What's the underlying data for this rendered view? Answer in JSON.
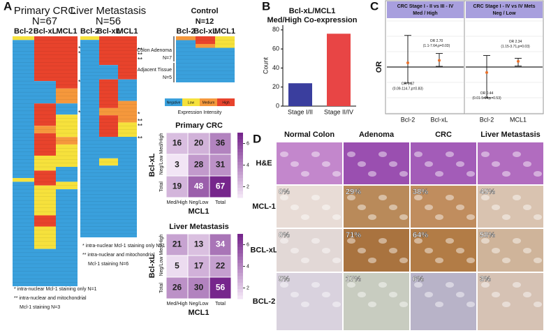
{
  "panel_labels": [
    "A",
    "B",
    "C",
    "D"
  ],
  "levels": [
    {
      "name": "Negative",
      "color": "#3aa0dc"
    },
    {
      "name": "Low",
      "color": "#f6e13c"
    },
    {
      "name": "Medium",
      "color": "#f5983c"
    },
    {
      "name": "High",
      "color": "#e8432c"
    }
  ],
  "legend_title": "Expression Intensity",
  "heatmaps": [
    {
      "title": "Primary CRC",
      "n": "N=67",
      "columns": [
        "Bcl-2",
        "Bcl-xL",
        "MCL1"
      ],
      "runs": [
        [
          [
            1,
            1
          ],
          [
            0,
            37
          ],
          [
            1,
            1
          ],
          [
            0,
            28
          ]
        ],
        [
          [
            3,
            12
          ],
          [
            0,
            6
          ],
          [
            3,
            6
          ],
          [
            2,
            2
          ],
          [
            3,
            6
          ],
          [
            1,
            4
          ],
          [
            3,
            4
          ],
          [
            1,
            8
          ],
          [
            3,
            3
          ],
          [
            1,
            6
          ],
          [
            0,
            10
          ]
        ],
        [
          [
            3,
            14
          ],
          [
            2,
            4
          ],
          [
            0,
            3
          ],
          [
            1,
            6
          ],
          [
            2,
            2
          ],
          [
            1,
            6
          ],
          [
            0,
            4
          ],
          [
            1,
            2
          ],
          [
            0,
            26
          ]
        ]
      ],
      "markers": [
        "**",
        "**",
        "**",
        "*"
      ],
      "footnotes": [
        "*  intra-nuclear Mcl-1 staining only N=1",
        "** intra-nuclear and mitochondrial",
        "Mcl-1 staining N=3"
      ]
    },
    {
      "title": "Liver Metastasis",
      "n": "N=56",
      "columns": [
        "Bcl-2",
        "Bcl-xL",
        "MCL1"
      ],
      "runs": [
        [
          [
            1,
            1
          ],
          [
            0,
            55
          ]
        ],
        [
          [
            3,
            8
          ],
          [
            0,
            4
          ],
          [
            3,
            8
          ],
          [
            2,
            2
          ],
          [
            3,
            6
          ],
          [
            0,
            6
          ],
          [
            1,
            2
          ],
          [
            0,
            20
          ]
        ],
        [
          [
            3,
            12
          ],
          [
            0,
            6
          ],
          [
            2,
            6
          ],
          [
            1,
            4
          ],
          [
            0,
            28
          ]
        ]
      ],
      "markers": [
        "**",
        "**",
        "**",
        "*",
        "**",
        "**",
        "**"
      ],
      "footnotes": [
        "*  intra-nuclear Mcl-1 staining only N=1",
        "** intra-nuclear and mitochondrial",
        "Mcl-1 staining N=6"
      ]
    },
    {
      "title": "Control",
      "n": "N=12",
      "columns": [
        "Bcl-2",
        "Bcl-xL",
        "MCL1"
      ],
      "runs": [
        [
          [
            2,
            1
          ],
          [
            0,
            11
          ]
        ],
        [
          [
            3,
            2
          ],
          [
            2,
            1
          ],
          [
            0,
            9
          ]
        ],
        [
          [
            1,
            3
          ],
          [
            0,
            9
          ]
        ]
      ],
      "row_groups": [
        [
          "Colon Adenoma",
          "N=7"
        ],
        [
          "Adjacent Tissue",
          "N=5"
        ]
      ]
    }
  ],
  "matrices": [
    {
      "title": "Primary CRC",
      "y_label": "Bcl-xL",
      "x_label": "MCL1",
      "row_labels": [
        "Med/High",
        "Neg/Low",
        "Total"
      ],
      "col_labels": [
        "Med/High",
        "Neg/Low",
        "Total"
      ],
      "cells": [
        [
          16,
          20,
          36
        ],
        [
          3,
          28,
          31
        ],
        [
          19,
          48,
          67
        ]
      ],
      "colorbar_lim": [
        1,
        7
      ],
      "colorbar_ticks": [
        2,
        4,
        6
      ]
    },
    {
      "title": "Liver Metastasis",
      "y_label": "Bcl-xL",
      "x_label": "MCL1",
      "row_labels": [
        "Med/High",
        "Neg/Low",
        "Total"
      ],
      "col_labels": [
        "Med/High",
        "Neg/Low",
        "Total"
      ],
      "cells": [
        [
          21,
          13,
          34
        ],
        [
          5,
          17,
          22
        ],
        [
          26,
          30,
          56
        ]
      ],
      "colorbar_lim": [
        1,
        7
      ],
      "colorbar_ticks": [
        2,
        4,
        6
      ]
    }
  ],
  "chart_data": {
    "type": "bar",
    "title": "Bcl-xL/MCL1",
    "subtitle": "Med/High Co-expression",
    "y_label": "Count",
    "categories": [
      "Stage I/II",
      "Stage II/IV"
    ],
    "values": [
      24,
      76
    ],
    "colors": [
      "#3a3e9e",
      "#e84545"
    ],
    "ylim": [
      0,
      85
    ],
    "yticks": [
      0,
      20,
      40,
      60,
      80
    ]
  },
  "forest": {
    "y_label": "OR",
    "log_scale": true,
    "ylim": [
      0.001,
      1000
    ],
    "reference": 1,
    "point_color": "#e8702a",
    "panels": [
      {
        "header": [
          "CRC Stage I - II vs III - IV",
          "Med / High"
        ],
        "points": [
          {
            "label": "Bcl-2",
            "or": 1.87,
            "ci": [
              0.09,
              114.7
            ],
            "text": [
              "OR 1.87",
              "(0.09-114.7,p=0.83)"
            ]
          },
          {
            "label": "Bcl-xL",
            "or": 2.7,
            "ci": [
              1.1,
              7.64
            ],
            "text": [
              "OR 2.70",
              "(1.1-7.64,p=0.03)"
            ]
          }
        ]
      },
      {
        "header": [
          "CRC Stage I - IV vs IV Mets",
          "Neg / Low"
        ],
        "points": [
          {
            "label": "Bcl-2",
            "or": 0.44,
            "ci": [
              0.01,
              5.64
            ],
            "text": [
              "OR 0.44",
              "(0.01-5.64,p=0.53)"
            ]
          },
          {
            "label": "MCL1",
            "or": 2.34,
            "ci": [
              1.15,
              3.71
            ],
            "text": [
              "OR 2.34",
              "(1.15-3.71,p=0.03)"
            ]
          }
        ]
      }
    ]
  },
  "histology": {
    "columns": [
      "Normal Colon",
      "Adenoma",
      "CRC",
      "Liver Metastasis"
    ],
    "rows": [
      {
        "name": "H&E"
      },
      {
        "name": "MCL-1",
        "values": [
          0,
          29,
          38,
          45
        ],
        "value_labels": [
          "0%",
          "29%",
          "38%",
          "45%"
        ]
      },
      {
        "name": "BCL-xL",
        "values": [
          0,
          71,
          64,
          58
        ],
        "value_labels": [
          "0%",
          "71%",
          "64%",
          "58%"
        ]
      },
      {
        "name": "BCL-2",
        "values": [
          5,
          17,
          6,
          3
        ],
        "value_labels": [
          "5%",
          "17%",
          "6%",
          "3%"
        ]
      }
    ]
  }
}
